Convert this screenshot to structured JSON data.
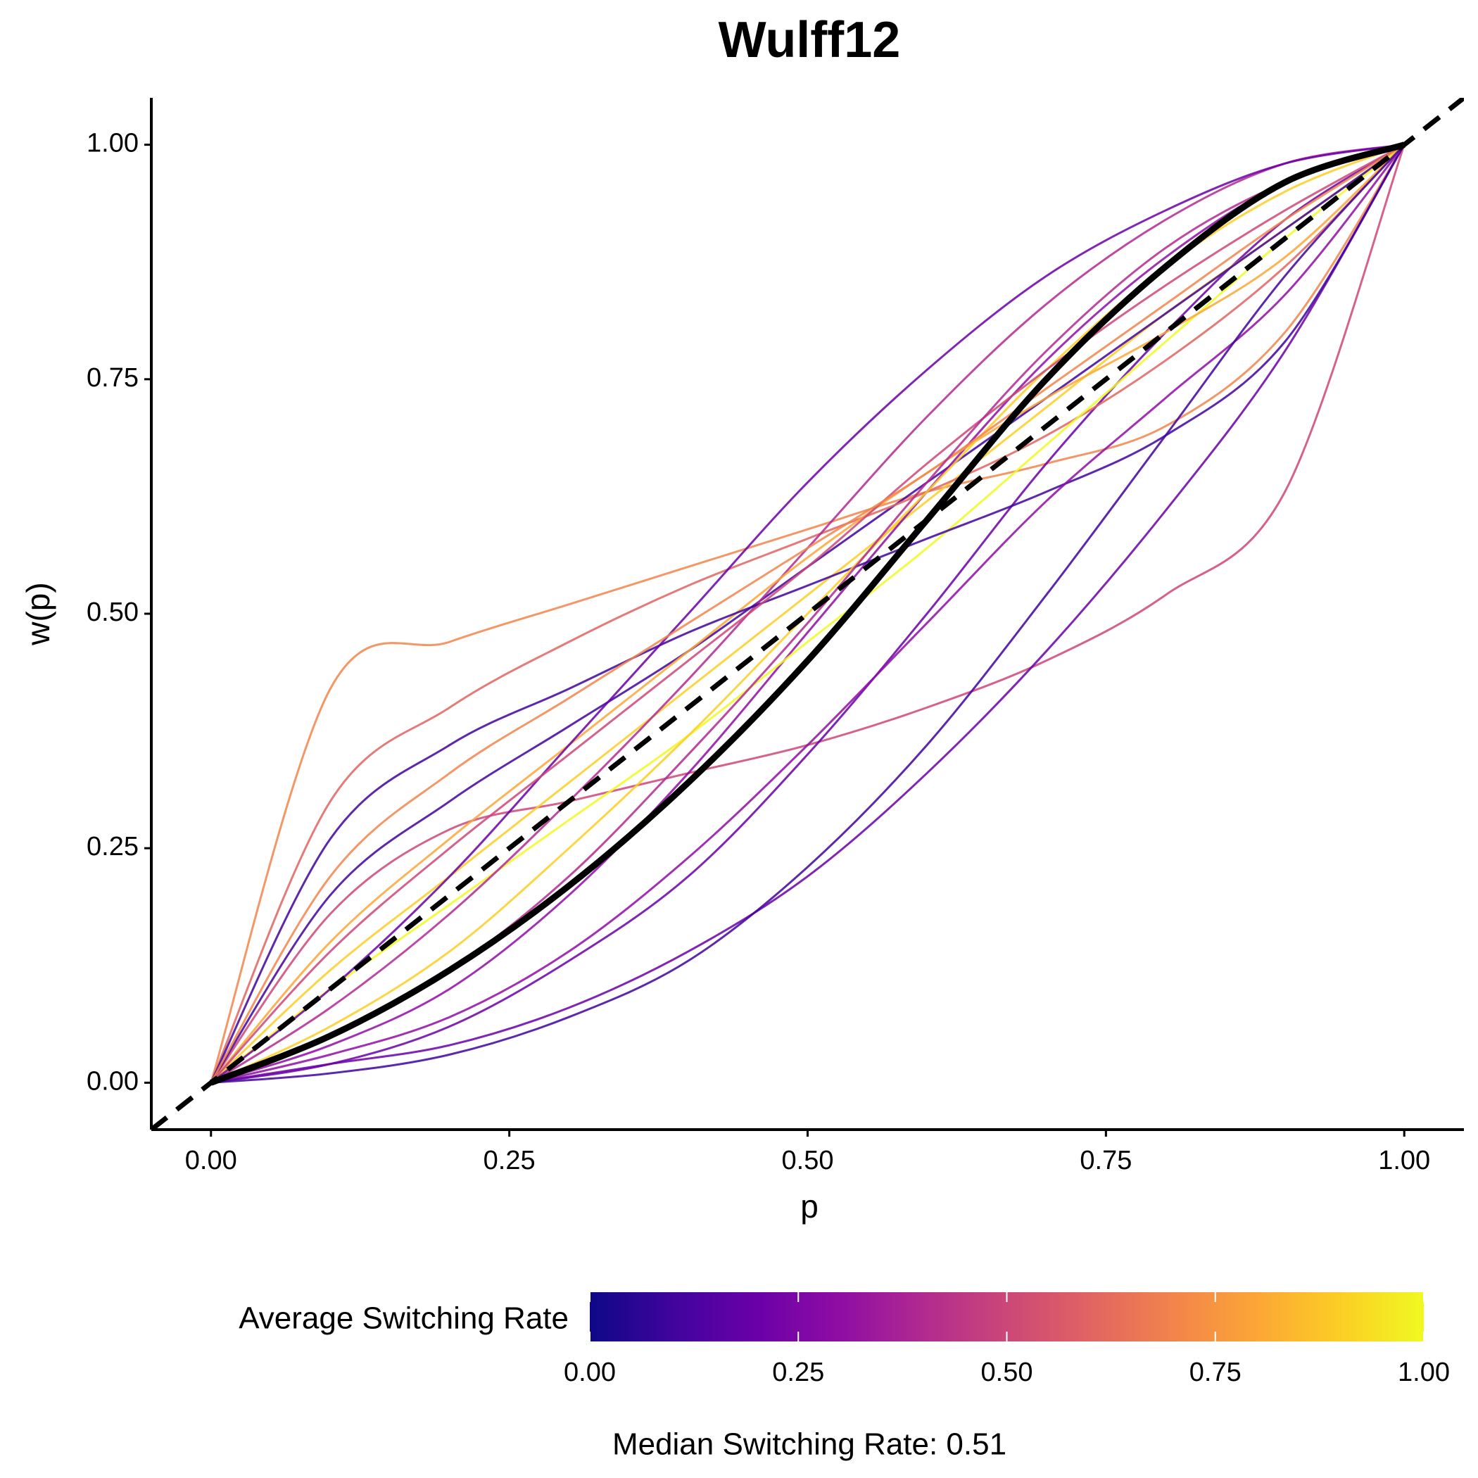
{
  "chart_data": {
    "type": "line",
    "title": "Wulff12",
    "xlabel": "p",
    "ylabel": "w(p)",
    "x": [
      0,
      0.1,
      0.2,
      0.3,
      0.4,
      0.5,
      0.6,
      0.7,
      0.8,
      0.9,
      1
    ],
    "xlim": [
      -0.05,
      1.05
    ],
    "ylim": [
      -0.05,
      1.05
    ],
    "xticks": [
      {
        "value": 0,
        "label": "0.00"
      },
      {
        "value": 0.25,
        "label": "0.25"
      },
      {
        "value": 0.5,
        "label": "0.50"
      },
      {
        "value": 0.75,
        "label": "0.75"
      },
      {
        "value": 1,
        "label": "1.00"
      }
    ],
    "yticks": [
      {
        "value": 0,
        "label": "0.00"
      },
      {
        "value": 0.25,
        "label": "0.25"
      },
      {
        "value": 0.5,
        "label": "0.50"
      },
      {
        "value": 0.75,
        "label": "0.75"
      },
      {
        "value": 1,
        "label": "1.00"
      }
    ],
    "diagonal": true,
    "series": [
      {
        "color": "#f2844b",
        "values": [
          0,
          0.42,
          0.47,
          0.51,
          0.55,
          0.59,
          0.63,
          0.66,
          0.7,
          0.8,
          1
        ]
      },
      {
        "color": "#cc4778",
        "values": [
          0,
          0.18,
          0.27,
          0.3,
          0.33,
          0.36,
          0.4,
          0.45,
          0.52,
          0.63,
          1
        ]
      },
      {
        "color": "#6a00a8",
        "values": [
          0,
          0.02,
          0.06,
          0.13,
          0.22,
          0.35,
          0.5,
          0.66,
          0.8,
          0.92,
          1
        ]
      },
      {
        "color": "#fcce25",
        "values": [
          0,
          0.12,
          0.22,
          0.32,
          0.42,
          0.52,
          0.62,
          0.72,
          0.82,
          0.91,
          1
        ]
      },
      {
        "color": "#41049d",
        "values": [
          0,
          0.2,
          0.3,
          0.38,
          0.46,
          0.55,
          0.64,
          0.73,
          0.82,
          0.91,
          1
        ]
      },
      {
        "color": "#e16462",
        "values": [
          0,
          0.3,
          0.4,
          0.47,
          0.53,
          0.58,
          0.63,
          0.69,
          0.77,
          0.87,
          1
        ]
      },
      {
        "color": "#8f0da4",
        "values": [
          0,
          0.04,
          0.1,
          0.2,
          0.33,
          0.48,
          0.63,
          0.77,
          0.88,
          0.96,
          1
        ]
      },
      {
        "color": "#f0f921",
        "values": [
          0,
          0.1,
          0.19,
          0.28,
          0.37,
          0.47,
          0.57,
          0.68,
          0.79,
          0.9,
          1
        ]
      },
      {
        "color": "#6a00a8",
        "values": [
          0,
          0.02,
          0.04,
          0.08,
          0.14,
          0.22,
          0.33,
          0.46,
          0.61,
          0.78,
          1
        ]
      },
      {
        "color": "#b12a90",
        "values": [
          0,
          0.08,
          0.18,
          0.3,
          0.43,
          0.57,
          0.71,
          0.83,
          0.92,
          0.98,
          1
        ]
      },
      {
        "color": "#fca636",
        "values": [
          0,
          0.15,
          0.26,
          0.36,
          0.46,
          0.56,
          0.65,
          0.73,
          0.8,
          0.88,
          1
        ]
      },
      {
        "color": "#41049d",
        "values": [
          0,
          0.26,
          0.36,
          0.42,
          0.48,
          0.53,
          0.58,
          0.63,
          0.69,
          0.79,
          1
        ]
      },
      {
        "color": "#8f0da4",
        "values": [
          0,
          0.03,
          0.07,
          0.14,
          0.24,
          0.36,
          0.49,
          0.62,
          0.73,
          0.84,
          1
        ]
      },
      {
        "color": "#fcce25",
        "values": [
          0,
          0.06,
          0.14,
          0.25,
          0.37,
          0.5,
          0.63,
          0.76,
          0.87,
          0.95,
          1
        ]
      },
      {
        "color": "#6a00a8",
        "values": [
          0,
          0.1,
          0.22,
          0.36,
          0.5,
          0.64,
          0.76,
          0.86,
          0.93,
          0.98,
          1
        ]
      },
      {
        "color": "#cc4778",
        "values": [
          0,
          0.14,
          0.25,
          0.35,
          0.45,
          0.55,
          0.66,
          0.76,
          0.85,
          0.93,
          1
        ]
      },
      {
        "color": "#41049d",
        "values": [
          0,
          0.01,
          0.03,
          0.07,
          0.13,
          0.23,
          0.36,
          0.52,
          0.69,
          0.86,
          1
        ]
      },
      {
        "color": "#f2844b",
        "values": [
          0,
          0.22,
          0.33,
          0.41,
          0.49,
          0.57,
          0.65,
          0.74,
          0.83,
          0.92,
          1
        ]
      },
      {
        "color": "#b12a90",
        "values": [
          0,
          0.05,
          0.12,
          0.22,
          0.35,
          0.49,
          0.64,
          0.78,
          0.89,
          0.96,
          1
        ]
      },
      {
        "color": "#000000",
        "style": "thick",
        "values": [
          0,
          0.05,
          0.12,
          0.21,
          0.32,
          0.45,
          0.6,
          0.75,
          0.87,
          0.96,
          1
        ]
      }
    ],
    "colorbar": {
      "title": "Average Switching Rate",
      "lim": [
        0,
        1
      ],
      "colors": [
        "#0d0887",
        "#41049d",
        "#6a00a8",
        "#8f0da4",
        "#b12a90",
        "#cc4778",
        "#e16462",
        "#f2844b",
        "#fca636",
        "#fcce25",
        "#f0f921"
      ],
      "ticks": [
        {
          "value": 0,
          "label": "0.00"
        },
        {
          "value": 0.25,
          "label": "0.25"
        },
        {
          "value": 0.5,
          "label": "0.50"
        },
        {
          "value": 0.75,
          "label": "0.75"
        },
        {
          "value": 1,
          "label": "1.00"
        }
      ]
    },
    "caption": "Median Switching Rate: 0.51"
  }
}
